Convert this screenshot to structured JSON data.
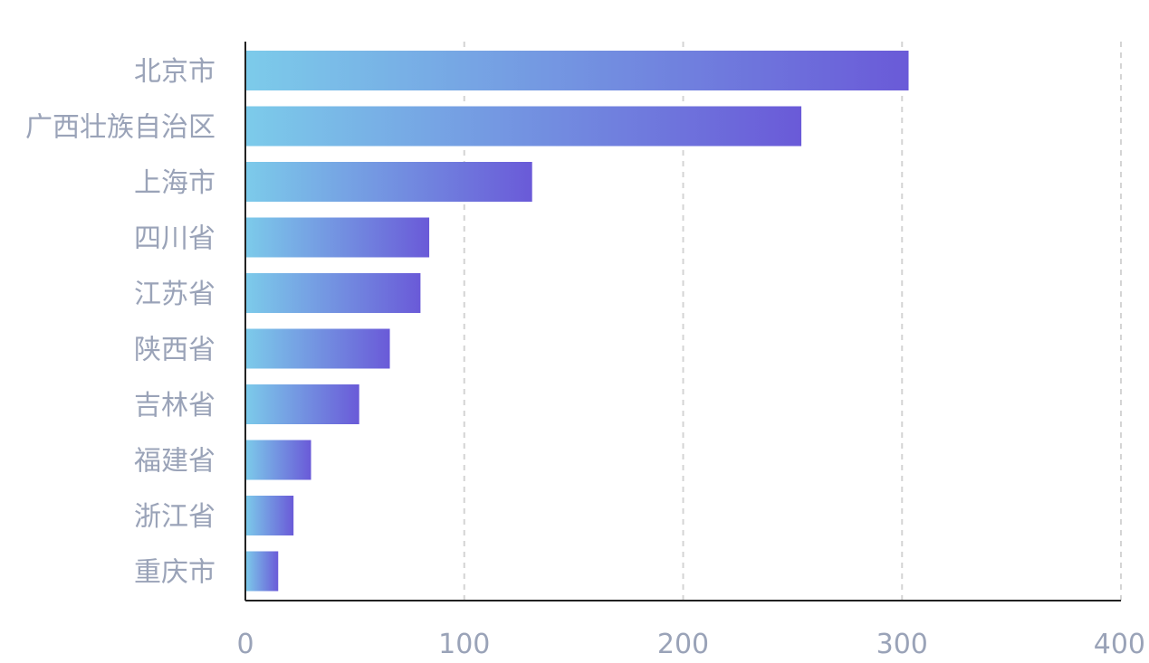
{
  "chart_data": {
    "type": "bar",
    "orientation": "horizontal",
    "categories": [
      "北京市",
      "广西壮族自治区",
      "上海市",
      "四川省",
      "江苏省",
      "陕西省",
      "吉林省",
      "福建省",
      "浙江省",
      "重庆市"
    ],
    "values": [
      303,
      254,
      131,
      84,
      80,
      66,
      52,
      30,
      22,
      15
    ],
    "xlim": [
      0,
      400
    ],
    "xticks": [
      "0",
      "100",
      "200",
      "300",
      "400"
    ],
    "grid": true,
    "legend": "none",
    "colors": {
      "bar_gradient_start": "#7ccbea",
      "bar_gradient_end": "#6a5ad8",
      "label_color": "#9aa3b8",
      "axis_color": "#222222",
      "grid_color": "#d4d4d4"
    }
  }
}
